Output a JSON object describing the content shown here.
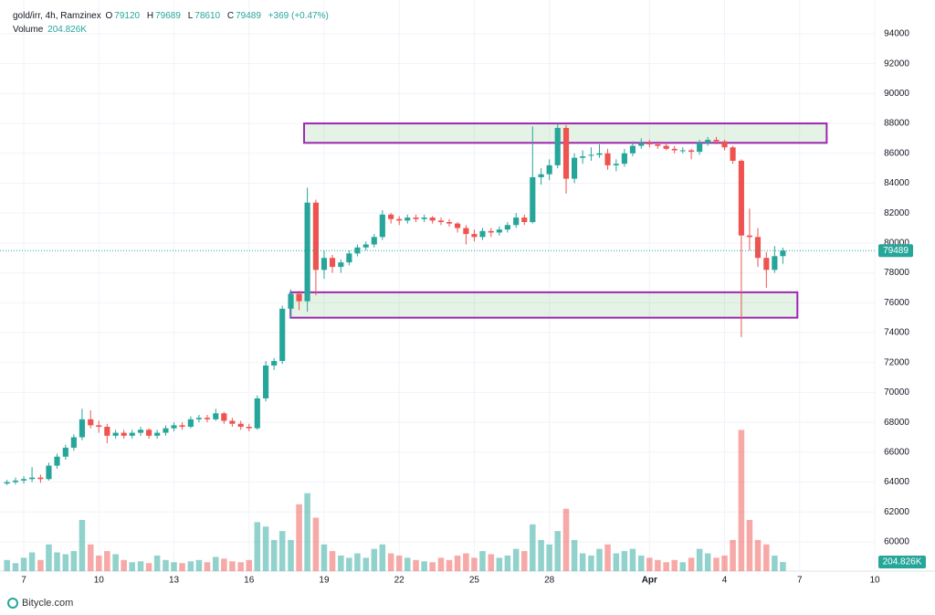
{
  "header": {
    "symbol": "gold/irr, 4h, Ramzinex",
    "o_label": "O",
    "h_label": "H",
    "l_label": "L",
    "c_label": "C",
    "change": "+369 (+0.47%)",
    "volume_label": "Volume"
  },
  "chart_data": {
    "type": "candlestick",
    "up_color": "#26a69a",
    "down_color": "#ef5350",
    "zone_color": "#9c27b0",
    "grid": true,
    "xlim": [
      6.05,
      41.0
    ],
    "ylim": [
      58040,
      96260
    ],
    "vlim": [
      0,
      4000000
    ],
    "xticks": [
      7,
      10,
      13,
      16,
      19,
      22,
      25,
      28,
      {
        "value": 32,
        "label": "Apr"
      },
      {
        "value": 35,
        "label": "4"
      },
      {
        "value": 38,
        "label": "7"
      },
      {
        "value": 41,
        "label": "10"
      }
    ],
    "yticks": [
      60000,
      62000,
      64000,
      66000,
      68000,
      70000,
      72000,
      74000,
      76000,
      78000,
      80000,
      82000,
      84000,
      86000,
      88000,
      90000,
      92000,
      94000
    ],
    "x": [
      6.33,
      6.67,
      7,
      7.33,
      7.67,
      8,
      8.33,
      8.67,
      9,
      9.33,
      9.67,
      10,
      10.33,
      10.67,
      11,
      11.33,
      11.67,
      12,
      12.33,
      12.67,
      13,
      13.33,
      13.67,
      14,
      14.33,
      14.67,
      15,
      15.33,
      15.67,
      16,
      16.33,
      16.67,
      17,
      17.33,
      17.67,
      18,
      18.33,
      18.67,
      19,
      19.33,
      19.67,
      20,
      20.33,
      20.67,
      21,
      21.33,
      21.67,
      22,
      22.33,
      22.67,
      23,
      23.33,
      23.67,
      24,
      24.33,
      24.67,
      25,
      25.33,
      25.67,
      26,
      26.33,
      26.67,
      27,
      27.33,
      27.67,
      28,
      28.33,
      28.67,
      29,
      29.33,
      29.67,
      30,
      30.33,
      30.67,
      31,
      31.33,
      31.67,
      32,
      32.33,
      32.67,
      33,
      33.33,
      33.67,
      34,
      34.33,
      34.67,
      35,
      35.33,
      35.67,
      36,
      36.33,
      36.67,
      37,
      37.33
    ],
    "open": [
      63900,
      64000,
      64100,
      64200,
      64300,
      64200,
      65100,
      65700,
      66300,
      67000,
      68200,
      67800,
      67700,
      67100,
      67300,
      67100,
      67300,
      67500,
      67100,
      67300,
      67600,
      67800,
      67700,
      68200,
      68300,
      68200,
      68600,
      68100,
      67900,
      67700,
      67600,
      69600,
      71800,
      72100,
      75600,
      76600,
      76100,
      82700,
      78200,
      79000,
      78400,
      78700,
      79300,
      79700,
      79900,
      80400,
      81900,
      81600,
      81500,
      81700,
      81600,
      81700,
      81500,
      81400,
      81300,
      81000,
      80600,
      80400,
      80800,
      80700,
      80900,
      81200,
      81700,
      81400,
      84400,
      84600,
      85200,
      87700,
      84300,
      85700,
      85900,
      85900,
      86000,
      85200,
      85300,
      86000,
      86500,
      86700,
      86600,
      86500,
      86300,
      86200,
      86200,
      86100,
      86700,
      86900,
      86800,
      86400,
      85500,
      80500,
      80400,
      79000,
      78200,
      79120
    ],
    "high": [
      64150,
      64300,
      64400,
      65000,
      64500,
      65300,
      65900,
      66500,
      67200,
      68900,
      68800,
      68100,
      67900,
      67500,
      67500,
      67500,
      67700,
      67600,
      67500,
      67800,
      68000,
      68000,
      68400,
      68500,
      68500,
      68900,
      68700,
      68300,
      68100,
      67900,
      69800,
      72100,
      72300,
      75800,
      76900,
      76800,
      83700,
      82900,
      79500,
      79200,
      78900,
      79500,
      79900,
      80100,
      80600,
      82200,
      82000,
      81800,
      81900,
      81900,
      81900,
      81800,
      81700,
      81600,
      81400,
      81200,
      80900,
      81000,
      81000,
      81100,
      81400,
      82000,
      81900,
      87800,
      85000,
      85600,
      88000,
      87900,
      86000,
      86200,
      86400,
      86600,
      86300,
      85600,
      86300,
      86800,
      87000,
      86900,
      86800,
      86700,
      86500,
      86400,
      86300,
      86900,
      87100,
      87100,
      86900,
      86500,
      85600,
      82300,
      81000,
      79400,
      79800,
      79689
    ],
    "low": [
      63800,
      63850,
      63900,
      64000,
      63950,
      64100,
      64900,
      65500,
      66100,
      66800,
      67600,
      67300,
      66600,
      66900,
      66900,
      66900,
      67100,
      66900,
      66900,
      67100,
      67400,
      67500,
      67600,
      68000,
      68000,
      68100,
      67900,
      67700,
      67500,
      67400,
      67500,
      69400,
      71500,
      71900,
      75000,
      75500,
      75400,
      76500,
      77600,
      78000,
      78000,
      78500,
      79100,
      79500,
      79700,
      80200,
      81300,
      81200,
      81300,
      81400,
      81400,
      81300,
      81200,
      81100,
      80700,
      79900,
      80100,
      80200,
      80400,
      80500,
      80700,
      81000,
      81200,
      81300,
      83900,
      84200,
      85000,
      83300,
      84000,
      85300,
      85500,
      85700,
      84900,
      84800,
      85100,
      85800,
      86300,
      86400,
      86300,
      86200,
      86000,
      86000,
      85600,
      85900,
      86500,
      86600,
      86200,
      85300,
      73700,
      79500,
      78400,
      77000,
      78000,
      78610
    ],
    "close": [
      64000,
      64100,
      64200,
      64300,
      64200,
      65100,
      65700,
      66300,
      67000,
      68200,
      67800,
      67700,
      67100,
      67300,
      67100,
      67300,
      67500,
      67100,
      67300,
      67600,
      67800,
      67700,
      68200,
      68300,
      68200,
      68600,
      68100,
      67900,
      67700,
      67600,
      69600,
      71800,
      72100,
      75600,
      76600,
      76100,
      82700,
      78200,
      79000,
      78400,
      78700,
      79300,
      79700,
      79900,
      80400,
      81900,
      81600,
      81500,
      81700,
      81600,
      81700,
      81500,
      81400,
      81300,
      81000,
      80600,
      80400,
      80800,
      80700,
      80900,
      81200,
      81700,
      81400,
      84400,
      84600,
      85200,
      87700,
      84300,
      85700,
      85800,
      85900,
      86000,
      85200,
      85300,
      86000,
      86500,
      86700,
      86600,
      86500,
      86300,
      86200,
      86200,
      86100,
      86700,
      86900,
      86800,
      86400,
      85500,
      80500,
      80400,
      79000,
      78200,
      79120,
      79489
    ],
    "volume": [
      250000,
      180000,
      300000,
      420000,
      250000,
      600000,
      420000,
      380000,
      450000,
      1150000,
      600000,
      350000,
      450000,
      380000,
      250000,
      200000,
      220000,
      180000,
      350000,
      250000,
      200000,
      180000,
      220000,
      250000,
      200000,
      320000,
      280000,
      220000,
      200000,
      250000,
      1100000,
      1000000,
      700000,
      900000,
      700000,
      1500000,
      1750000,
      1200000,
      600000,
      450000,
      350000,
      300000,
      400000,
      300000,
      500000,
      600000,
      400000,
      350000,
      300000,
      250000,
      220000,
      200000,
      300000,
      250000,
      350000,
      400000,
      300000,
      450000,
      380000,
      300000,
      350000,
      500000,
      450000,
      1050000,
      700000,
      600000,
      900000,
      1400000,
      700000,
      400000,
      350000,
      500000,
      600000,
      400000,
      450000,
      500000,
      350000,
      300000,
      250000,
      200000,
      250000,
      200000,
      300000,
      500000,
      400000,
      300000,
      350000,
      700000,
      3170000,
      1150000,
      700000,
      600000,
      350000,
      204826
    ],
    "last_volume_label": "204.826K",
    "zones": [
      {
        "xlim": [
          18.2,
          39.08
        ],
        "ylim": [
          86700,
          88000
        ]
      },
      {
        "xlim": [
          17.66,
          37.91
        ],
        "ylim": [
          75000,
          76700
        ]
      }
    ]
  },
  "footer": {
    "brand": "Bitycle.com"
  }
}
